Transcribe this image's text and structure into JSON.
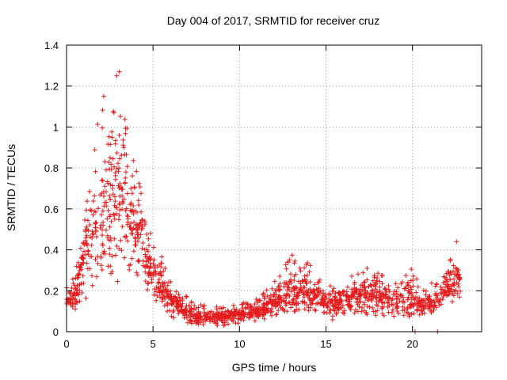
{
  "chart_data": {
    "type": "scatter",
    "title": "Day 004 of 2017, SRMTID for receiver cruz",
    "xlabel": "GPS time / hours",
    "ylabel": "SRMTID / TECUs",
    "xlim": [
      0,
      24
    ],
    "ylim": [
      0,
      1.4
    ],
    "xticks": [
      0,
      5,
      10,
      15,
      20
    ],
    "yticks": [
      0,
      0.2,
      0.4,
      0.6,
      0.8,
      1,
      1.2,
      1.4
    ],
    "xtick_labels": [
      "0",
      "5",
      "10",
      "15",
      "20"
    ],
    "ytick_labels": [
      "0",
      "0.2",
      "0.4",
      "0.6",
      "0.8",
      "1",
      "1.2",
      "1.4"
    ],
    "grid": true,
    "marker": "+",
    "color": "#e41a1c",
    "x_range_of_data": [
      0,
      22.8
    ],
    "envelope": [
      {
        "x": 0.0,
        "min": 0.1,
        "max": 0.22,
        "typ": 0.15
      },
      {
        "x": 0.5,
        "min": 0.1,
        "max": 0.3,
        "typ": 0.16
      },
      {
        "x": 1.0,
        "min": 0.15,
        "max": 0.55,
        "typ": 0.35
      },
      {
        "x": 1.5,
        "min": 0.2,
        "max": 0.95,
        "typ": 0.5
      },
      {
        "x": 2.0,
        "min": 0.18,
        "max": 1.1,
        "typ": 0.55
      },
      {
        "x": 2.5,
        "min": 0.2,
        "max": 1.05,
        "typ": 0.6
      },
      {
        "x": 3.0,
        "min": 0.25,
        "max": 1.27,
        "typ": 0.7
      },
      {
        "x": 3.5,
        "min": 0.25,
        "max": 1.0,
        "typ": 0.55
      },
      {
        "x": 4.0,
        "min": 0.25,
        "max": 0.85,
        "typ": 0.5
      },
      {
        "x": 4.5,
        "min": 0.2,
        "max": 0.6,
        "typ": 0.4
      },
      {
        "x": 5.0,
        "min": 0.15,
        "max": 0.5,
        "typ": 0.3
      },
      {
        "x": 5.5,
        "min": 0.1,
        "max": 0.4,
        "typ": 0.22
      },
      {
        "x": 6.0,
        "min": 0.07,
        "max": 0.25,
        "typ": 0.15
      },
      {
        "x": 7.0,
        "min": 0.03,
        "max": 0.18,
        "typ": 0.08
      },
      {
        "x": 8.0,
        "min": 0.03,
        "max": 0.13,
        "typ": 0.07
      },
      {
        "x": 9.0,
        "min": 0.03,
        "max": 0.12,
        "typ": 0.07
      },
      {
        "x": 10.0,
        "min": 0.04,
        "max": 0.14,
        "typ": 0.09
      },
      {
        "x": 11.0,
        "min": 0.05,
        "max": 0.16,
        "typ": 0.1
      },
      {
        "x": 12.0,
        "min": 0.08,
        "max": 0.25,
        "typ": 0.14
      },
      {
        "x": 13.0,
        "min": 0.1,
        "max": 0.38,
        "typ": 0.18
      },
      {
        "x": 14.0,
        "min": 0.1,
        "max": 0.34,
        "typ": 0.2
      },
      {
        "x": 15.0,
        "min": 0.05,
        "max": 0.22,
        "typ": 0.14
      },
      {
        "x": 16.0,
        "min": 0.07,
        "max": 0.25,
        "typ": 0.15
      },
      {
        "x": 17.0,
        "min": 0.08,
        "max": 0.3,
        "typ": 0.18
      },
      {
        "x": 18.0,
        "min": 0.08,
        "max": 0.33,
        "typ": 0.18
      },
      {
        "x": 19.0,
        "min": 0.06,
        "max": 0.25,
        "typ": 0.15
      },
      {
        "x": 20.0,
        "min": 0.05,
        "max": 0.33,
        "typ": 0.15
      },
      {
        "x": 20.5,
        "min": 0.08,
        "max": 0.2,
        "typ": 0.12
      },
      {
        "x": 21.0,
        "min": 0.08,
        "max": 0.25,
        "typ": 0.14
      },
      {
        "x": 21.5,
        "min": 0.1,
        "max": 0.25,
        "typ": 0.17
      },
      {
        "x": 22.0,
        "min": 0.12,
        "max": 0.3,
        "typ": 0.2
      },
      {
        "x": 22.5,
        "min": 0.15,
        "max": 0.44,
        "typ": 0.25
      },
      {
        "x": 22.8,
        "min": 0.13,
        "max": 0.33,
        "typ": 0.22
      }
    ],
    "outliers": [
      {
        "x": 20.15,
        "y": 0.0
      },
      {
        "x": 21.45,
        "y": 0.0
      },
      {
        "x": 3.05,
        "y": 1.27
      },
      {
        "x": 2.9,
        "y": 1.25
      },
      {
        "x": 2.15,
        "y": 1.15
      },
      {
        "x": 22.55,
        "y": 0.44
      }
    ]
  }
}
